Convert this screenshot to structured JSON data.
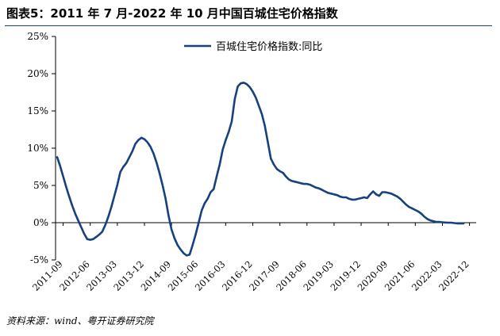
{
  "page": {
    "title": "图表5：2011 年 7 月-2022 年 10 月中国百城住宅价格指数",
    "source": "资料来源：wind、粤开证券研究院"
  },
  "colors": {
    "series": "#17407e",
    "axis": "#000000",
    "rule": "#1f3f7a"
  },
  "chart_data": {
    "type": "line",
    "title": "",
    "xlabel": "",
    "ylabel": "",
    "ylim": [
      -5,
      25
    ],
    "ytick_labels": [
      "25%",
      "20%",
      "15%",
      "10%",
      "5%",
      "0%",
      "-5%"
    ],
    "ytick_values": [
      25,
      20,
      15,
      10,
      5,
      0,
      -5
    ],
    "xtick_labels": [
      "2011-09",
      "2012-06",
      "2013-03",
      "2013-12",
      "2014-09",
      "2015-06",
      "2016-03",
      "2016-12",
      "2017-09",
      "2018-06",
      "2019-03",
      "2019-12",
      "2020-09",
      "2021-06",
      "2022-03",
      "2022-12"
    ],
    "x_start": "2011-07",
    "x_end": "2022-10",
    "grid": false,
    "legend_position": "top-center",
    "series": [
      {
        "name": "百城住宅价格指数:同比",
        "values": [
          8.8,
          7.6,
          6.2,
          4.8,
          3.5,
          2.3,
          1.2,
          0.3,
          -0.6,
          -1.5,
          -2.2,
          -2.3,
          -2.2,
          -1.9,
          -1.6,
          -1.2,
          -0.3,
          0.8,
          2.1,
          3.6,
          5.1,
          6.8,
          7.5,
          8.0,
          8.8,
          9.6,
          10.6,
          11.1,
          11.4,
          11.2,
          10.8,
          10.2,
          9.3,
          8.1,
          6.7,
          5.1,
          3.3,
          1.0,
          -0.9,
          -2.1,
          -3.0,
          -3.6,
          -4.1,
          -4.4,
          -4.3,
          -3.0,
          -1.6,
          0.0,
          1.6,
          2.6,
          3.2,
          4.1,
          4.5,
          6.2,
          7.8,
          9.8,
          11.1,
          12.2,
          13.6,
          16.6,
          18.3,
          18.7,
          18.8,
          18.6,
          18.2,
          17.6,
          16.8,
          15.7,
          14.6,
          13.0,
          10.8,
          8.6,
          7.8,
          7.2,
          6.9,
          6.7,
          6.2,
          5.8,
          5.6,
          5.5,
          5.4,
          5.3,
          5.2,
          5.2,
          5.1,
          4.9,
          4.7,
          4.6,
          4.4,
          4.2,
          4.0,
          3.9,
          3.8,
          3.7,
          3.5,
          3.4,
          3.4,
          3.2,
          3.1,
          3.1,
          3.2,
          3.3,
          3.4,
          3.3,
          3.8,
          4.2,
          3.8,
          3.6,
          4.1,
          4.1,
          4.0,
          3.9,
          3.7,
          3.5,
          3.2,
          2.8,
          2.4,
          2.1,
          1.9,
          1.7,
          1.5,
          1.2,
          0.8,
          0.5,
          0.3,
          0.2,
          0.1,
          0.1,
          0.05,
          0.02,
          0.0,
          0.0,
          -0.05,
          -0.1,
          -0.1,
          -0.1
        ]
      }
    ]
  }
}
